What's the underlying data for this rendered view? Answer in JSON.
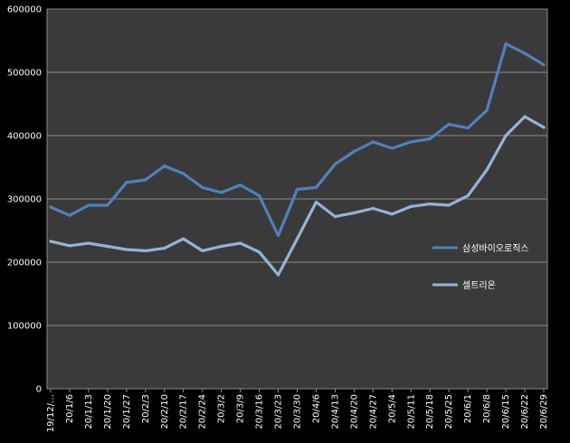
{
  "chart_data": {
    "type": "line",
    "title": "",
    "xlabel": "",
    "ylabel": "",
    "ylim": [
      0,
      600000
    ],
    "yticks": [
      0,
      100000,
      200000,
      300000,
      400000,
      500000,
      600000
    ],
    "grid": "horizontal",
    "legend_position": "right",
    "categories": [
      "19/12/…",
      "20/1/6",
      "20/1/13",
      "20/1/20",
      "20/1/27",
      "20/2/3",
      "20/2/10",
      "20/2/17",
      "20/2/24",
      "20/3/2",
      "20/3/9",
      "20/3/16",
      "20/3/23",
      "20/3/30",
      "20/4/6",
      "20/4/13",
      "20/4/20",
      "20/4/27",
      "20/5/4",
      "20/5/11",
      "20/5/18",
      "20/5/25",
      "20/6/1",
      "20/6/8",
      "20/6/15",
      "20/6/22",
      "20/6/29"
    ],
    "series": [
      {
        "name": "삼성바이오로직스",
        "color": "#4f81bd",
        "values": [
          287000,
          274000,
          290000,
          290000,
          326000,
          330000,
          352000,
          340000,
          318000,
          310000,
          322000,
          305000,
          242000,
          315000,
          318000,
          355000,
          375000,
          390000,
          380000,
          390000,
          395000,
          418000,
          412000,
          440000,
          545000,
          530000,
          512000
        ]
      },
      {
        "name": "셀트리온",
        "color": "#95b3d7",
        "values": [
          233000,
          226000,
          230000,
          225000,
          220000,
          218000,
          222000,
          237000,
          218000,
          225000,
          230000,
          216000,
          180000,
          237000,
          295000,
          272000,
          278000,
          285000,
          276000,
          288000,
          292000,
          290000,
          305000,
          346000,
          400000,
          430000,
          413000
        ]
      }
    ]
  }
}
